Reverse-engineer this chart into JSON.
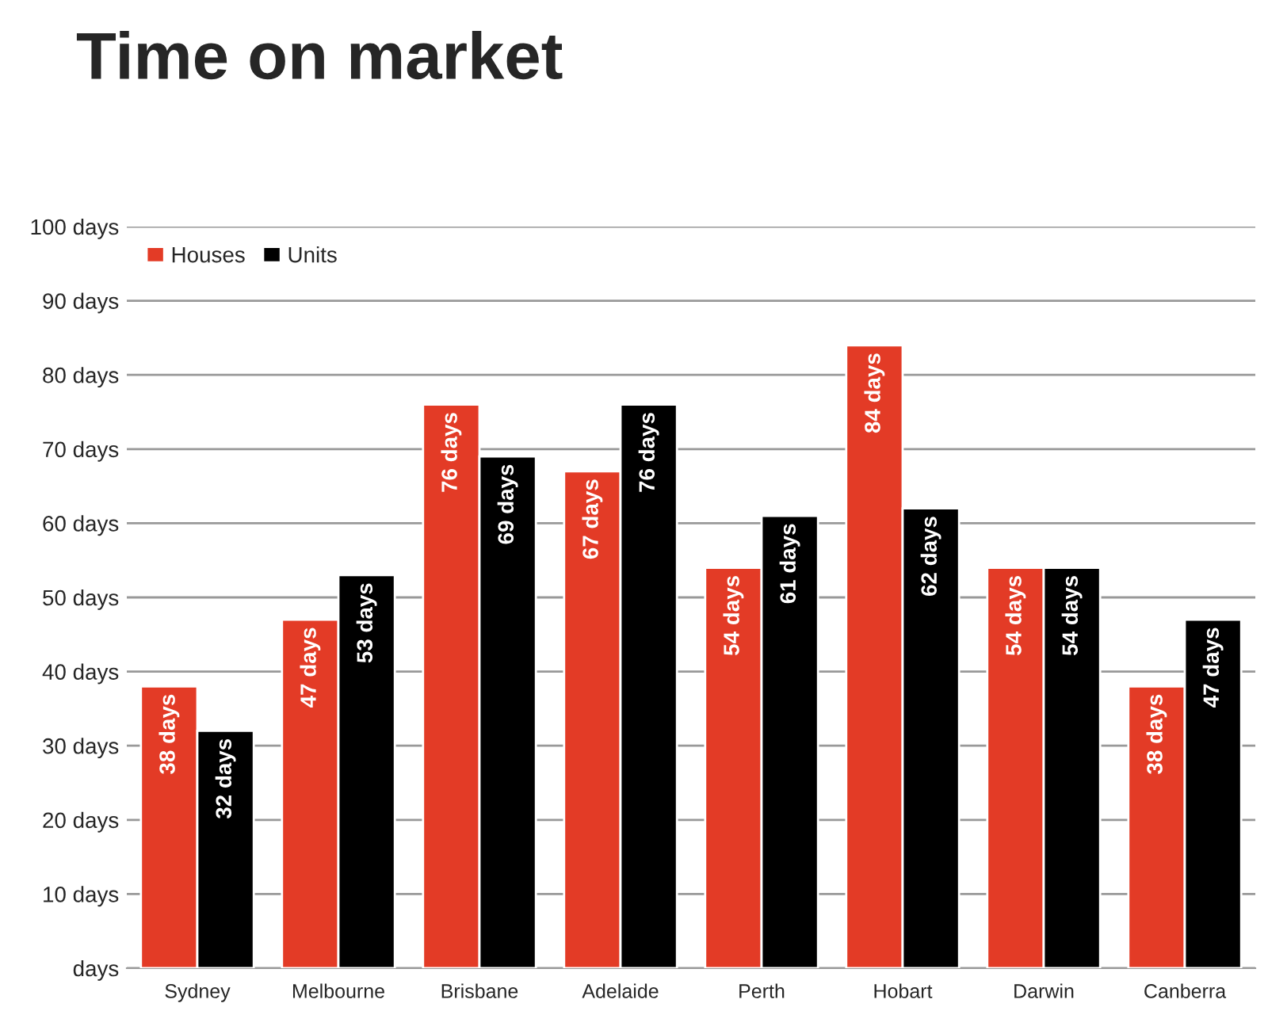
{
  "chart_data": {
    "type": "bar",
    "title": "Time on market",
    "categories": [
      "Sydney",
      "Melbourne",
      "Brisbane",
      "Adelaide",
      "Perth",
      "Hobart",
      "Darwin",
      "Canberra"
    ],
    "series": [
      {
        "name": "Houses",
        "color": "#e33b26",
        "values": [
          38,
          47,
          76,
          67,
          54,
          84,
          54,
          38
        ],
        "value_labels": [
          "38 days",
          "47 days",
          "76 days",
          "67 days",
          "54 days",
          "84 days",
          "54 days",
          "38 days"
        ]
      },
      {
        "name": "Units",
        "color": "#000000",
        "values": [
          32,
          53,
          69,
          76,
          61,
          62,
          54,
          47
        ],
        "value_labels": [
          "32 days",
          "53 days",
          "69 days",
          "76 days",
          "61 days",
          "62 days",
          "54 days",
          "47 days"
        ]
      }
    ],
    "ylim": [
      0,
      100
    ],
    "yticks": [
      {
        "value": 0,
        "label": "days"
      },
      {
        "value": 10,
        "label": "10 days"
      },
      {
        "value": 20,
        "label": "20 days"
      },
      {
        "value": 30,
        "label": "30 days"
      },
      {
        "value": 40,
        "label": "40 days"
      },
      {
        "value": 50,
        "label": "50 days"
      },
      {
        "value": 60,
        "label": "60 days"
      },
      {
        "value": 70,
        "label": "70 days"
      },
      {
        "value": 80,
        "label": "80 days"
      },
      {
        "value": 90,
        "label": "90 days"
      },
      {
        "value": 100,
        "label": "100 days"
      }
    ],
    "grid": "y",
    "legend": "top left"
  }
}
